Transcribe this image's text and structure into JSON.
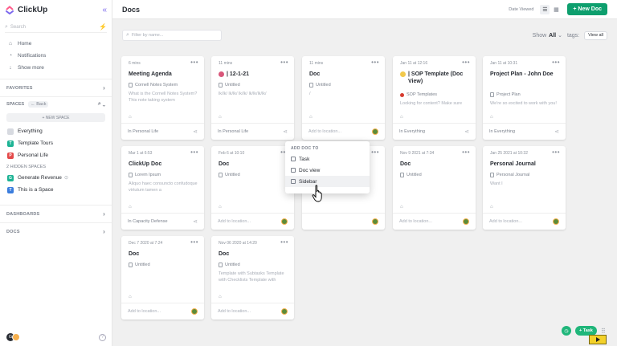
{
  "app": {
    "name": "ClickUp"
  },
  "sidebar": {
    "search_placeholder": "Search",
    "nav": [
      {
        "label": "Home",
        "icon": "home-icon"
      },
      {
        "label": "Notifications",
        "icon": "bell-icon"
      },
      {
        "label": "Show more",
        "icon": "arrow-down-icon"
      }
    ],
    "favorites_label": "FAVORITES",
    "spaces_label": "SPACES",
    "back_label": "Back",
    "new_space_label": "+ NEW SPACE",
    "spaces": [
      {
        "label": "Everything",
        "badge": "",
        "color": "#d7dae0"
      },
      {
        "label": "Template Tours",
        "badge": "T",
        "color": "#1db394"
      },
      {
        "label": "Personal Life",
        "badge": "P",
        "color": "#e44a4a"
      }
    ],
    "hidden_spaces_label": "2 HIDDEN SPACES",
    "hidden_spaces": [
      {
        "label": "Generate Revenue",
        "badge": "G",
        "color": "#1db394"
      },
      {
        "label": "This is a Space",
        "badge": "T",
        "color": "#3b7ddd"
      }
    ],
    "dashboards_label": "DASHBOARDS",
    "docs_label": "DOCS",
    "user_initial": "G"
  },
  "topbar": {
    "title": "Docs",
    "sort_label": "Date Viewed",
    "new_doc_label": "+ New Doc"
  },
  "filter": {
    "placeholder": "Filter by name...",
    "show_label": "Show",
    "show_value": "All",
    "tags_label": "tags:",
    "view_all_label": "View all"
  },
  "cards": [
    {
      "date": "6 mins",
      "title": "Meeting Agenda",
      "subtitle": "Cornell Notes System",
      "body": "What is the Cornell Notes System? This note taking system",
      "footer": "In Personal Life",
      "footer_type": "share"
    },
    {
      "date": "11 mins",
      "title": "| 12-1-21",
      "emoji": "#d9577a",
      "subtitle": "Untitled",
      "body": "lk/lk/ lk/lk/ lk/lk/ lk/lk/lk/lk/",
      "footer": "In Personal Life",
      "footer_type": "share"
    },
    {
      "date": "11 mins",
      "title": "Doc",
      "subtitle": "Untitled",
      "body": "/",
      "footer": "Add to location...",
      "footer_type": "avatar"
    },
    {
      "date": "Jan 11 at 12:16",
      "title": "| SOP Template (Doc View)",
      "emoji": "#f2c94c",
      "subtitle": "SOP Templates",
      "sub_dot": true,
      "body": "Looking for content? Make sure",
      "footer": "In Everything",
      "footer_type": "share"
    },
    {
      "date": "Jan 11 at 10:31",
      "title": "Project Plan - John Doe",
      "subtitle": "Project Plan",
      "body": "We're so excited to work with you!",
      "footer": "In Everything",
      "footer_type": "share"
    },
    {
      "date": "Mar 1 at 6:53",
      "title": "ClickUp Doc",
      "subtitle": "Lorem Ipsum",
      "body": "Aliquo haec consuncto confudoque virtutum tamen a",
      "footer": "In Capacity Defense",
      "footer_type": "share"
    },
    {
      "date": "Feb 6 at 10:10",
      "title": "Doc",
      "subtitle": "Untitled",
      "body": "",
      "footer": "Add to location...",
      "footer_type": "avatar"
    },
    {
      "date": "",
      "title": "",
      "subtitle": "",
      "body": "",
      "footer": "",
      "footer_type": "avatar"
    },
    {
      "date": "Nov 9 2021 at 7:34",
      "title": "Doc",
      "subtitle": "Untitled",
      "body": "",
      "footer": "Add to location...",
      "footer_type": "avatar"
    },
    {
      "date": "Jan 25 2021 at 10:32",
      "title": "Personal Journal",
      "subtitle": "Personal Journal",
      "body": "Want I",
      "footer": "Add to location...",
      "footer_type": "avatar"
    },
    {
      "date": "Dec 7 2020 at 7:24",
      "title": "Doc",
      "subtitle": "Untitled",
      "body": "",
      "footer": "Add to location...",
      "footer_type": "avatar"
    },
    {
      "date": "Nov 06 2020 at 14:20",
      "title": "Doc",
      "subtitle": "Untitled",
      "body": "Template with Subtasks Template with Checklists Template with",
      "footer": "Add to location...",
      "footer_type": "avatar"
    }
  ],
  "menu": {
    "heading": "ADD DOC TO",
    "items": [
      {
        "label": "Task",
        "icon": "task-icon"
      },
      {
        "label": "Doc view",
        "icon": "doc-view-icon"
      },
      {
        "label": "Sidebar",
        "icon": "sidebar-icon"
      }
    ]
  },
  "widgets": {
    "task_label": "+ Task"
  },
  "colors": {
    "accent": "#7b68ee",
    "brand_green": "#0e9f6e"
  }
}
